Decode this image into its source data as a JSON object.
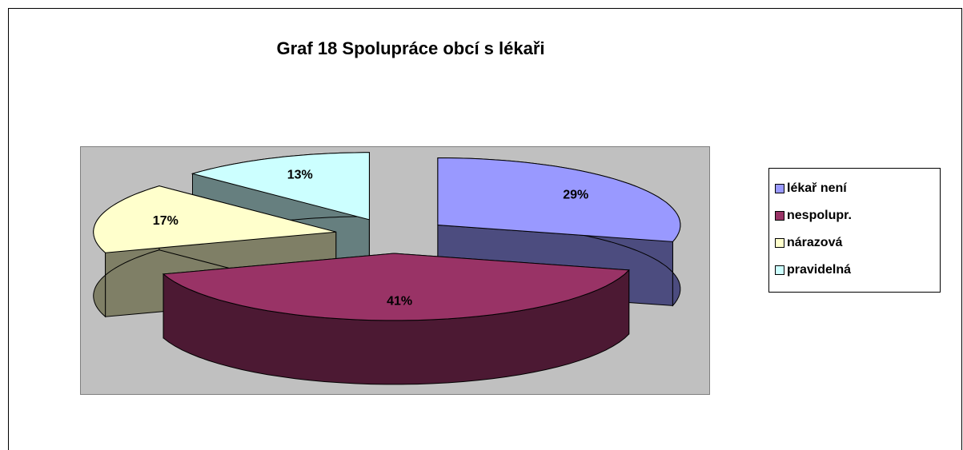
{
  "chart_data": {
    "type": "pie",
    "title": "Graf 18 Spolupráce obcí s lékaři",
    "categories": [
      "lékař není",
      "nespolupr.",
      "nárazová",
      "pravidelná"
    ],
    "values": [
      29,
      41,
      17,
      13
    ],
    "value_labels": [
      "29%",
      "41%",
      "17%",
      "13%"
    ],
    "colors": [
      "#9999ff",
      "#993366",
      "#ffffcc",
      "#ccffff"
    ],
    "legend": "right"
  }
}
